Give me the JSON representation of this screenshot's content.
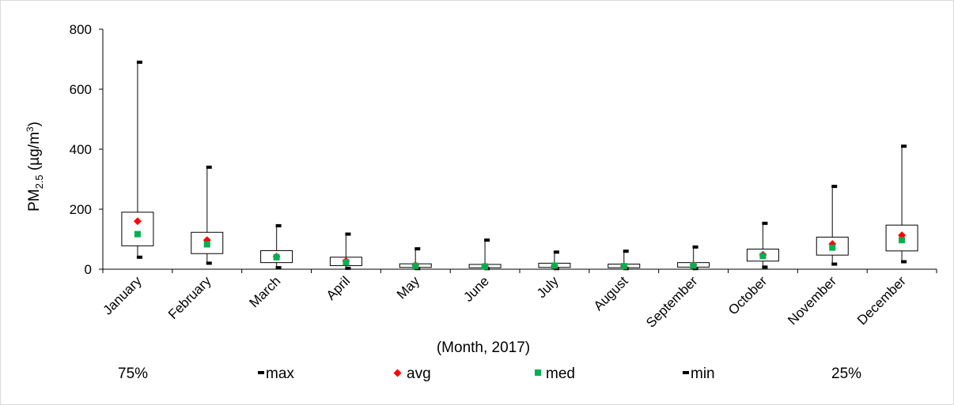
{
  "chart_data": {
    "type": "boxplot",
    "title": "",
    "xlabel": "(Month, 2017)",
    "ylabel": {
      "base": "PM",
      "subscript": "2.5",
      "unit_open": " (µg/m",
      "unit_sup": "3",
      "unit_close": ")"
    },
    "ylim": [
      0,
      800
    ],
    "yticks": [
      "0",
      "200",
      "400",
      "600",
      "800"
    ],
    "grid": false,
    "legend_position": "bottom",
    "categories": [
      "January",
      "February",
      "March",
      "April",
      "May",
      "June",
      "July",
      "August",
      "September",
      "October",
      "November",
      "December"
    ],
    "series": [
      {
        "name": "75%",
        "values": [
          190,
          123,
          62,
          40,
          18,
          16,
          20,
          17,
          22,
          67,
          107,
          147
        ]
      },
      {
        "name": "max",
        "values": [
          690,
          340,
          145,
          117,
          68,
          97,
          57,
          60,
          74,
          153,
          276,
          410
        ]
      },
      {
        "name": "avg",
        "values": [
          160,
          97,
          42,
          27,
          13,
          10,
          11,
          10,
          14,
          48,
          84,
          113
        ]
      },
      {
        "name": "med",
        "values": [
          117,
          83,
          40,
          23,
          11,
          9,
          12,
          10,
          12,
          44,
          72,
          97
        ]
      },
      {
        "name": "min",
        "values": [
          40,
          20,
          5,
          3,
          2,
          2,
          2,
          2,
          2,
          7,
          17,
          25
        ]
      },
      {
        "name": "25%",
        "values": [
          78,
          52,
          22,
          12,
          6,
          5,
          6,
          5,
          7,
          27,
          47,
          61
        ]
      }
    ],
    "colors": {
      "avg": "#ff0000",
      "med": "#00b050",
      "box_stroke": "#000000",
      "whisker": "#404040",
      "axis": "#000000"
    }
  }
}
